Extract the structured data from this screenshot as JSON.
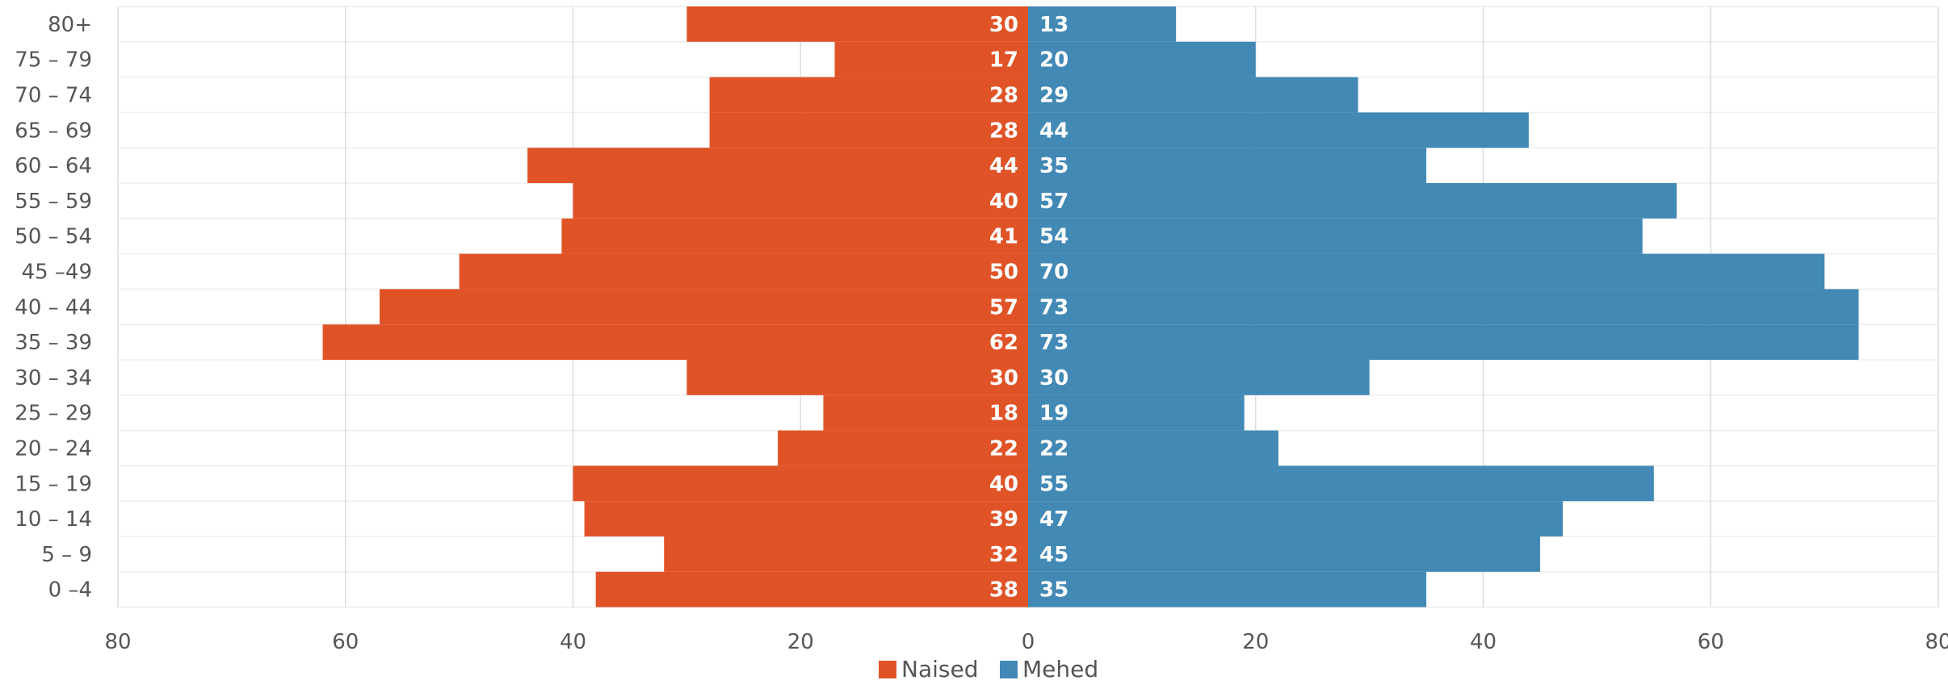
{
  "chart_data": {
    "type": "bar",
    "orientation": "horizontal-population-pyramid",
    "categories": [
      "80+",
      "75 – 79",
      "70 – 74",
      "65 – 69",
      "60 – 64",
      "55 – 59",
      "50 – 54",
      "45 –49",
      "40 – 44",
      "35 – 39",
      "30 – 34",
      "25 – 29",
      "20 – 24",
      "15 – 19",
      "10 – 14",
      "5 – 9",
      "0 –4"
    ],
    "series": [
      {
        "name": "Naised",
        "color": "#e05327",
        "side": "left",
        "values": [
          30,
          17,
          28,
          28,
          44,
          40,
          41,
          50,
          57,
          62,
          30,
          18,
          22,
          40,
          39,
          32,
          38
        ]
      },
      {
        "name": "Mehed",
        "color": "#4289b5",
        "side": "right",
        "values": [
          13,
          20,
          29,
          44,
          35,
          57,
          54,
          70,
          73,
          73,
          30,
          19,
          22,
          55,
          47,
          45,
          35
        ]
      }
    ],
    "xlim": [
      -80,
      80
    ],
    "x_ticks": [
      {
        "value": -80,
        "label": "80"
      },
      {
        "value": -60,
        "label": "60"
      },
      {
        "value": -40,
        "label": "40"
      },
      {
        "value": -20,
        "label": "20"
      },
      {
        "value": 0,
        "label": "0"
      },
      {
        "value": 20,
        "label": "20"
      },
      {
        "value": 40,
        "label": "40"
      },
      {
        "value": 60,
        "label": "60"
      },
      {
        "value": 80,
        "label": "80"
      }
    ],
    "grid": true,
    "legend": "bottom-center",
    "data_labels": true
  }
}
